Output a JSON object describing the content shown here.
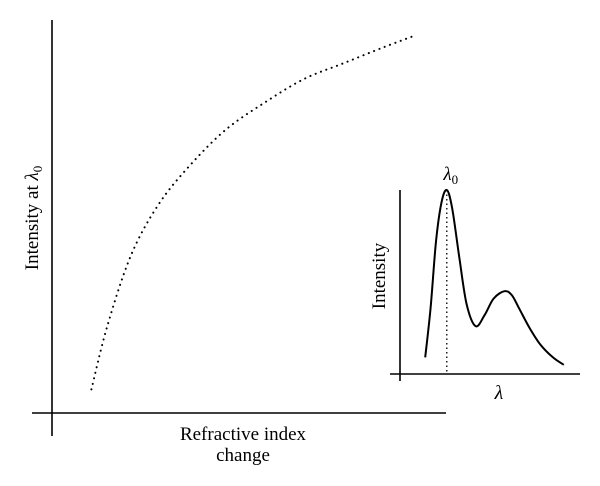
{
  "chart_data": [
    {
      "type": "line",
      "title": "",
      "xlabel": [
        "Refractive index",
        "change"
      ],
      "ylabel_text": "Intensity at ",
      "ylabel_symbol": "λ",
      "ylabel_subscript": "0",
      "xlim": [
        0,
        1
      ],
      "ylim": [
        0,
        1
      ],
      "grid": false,
      "series": [
        {
          "line_style": "dotted",
          "x": [
            0.1,
            0.14,
            0.2,
            0.27,
            0.35,
            0.44,
            0.54,
            0.64,
            0.74,
            0.84,
            0.92
          ],
          "y": [
            0.06,
            0.22,
            0.4,
            0.53,
            0.63,
            0.72,
            0.79,
            0.85,
            0.89,
            0.93,
            0.96
          ]
        }
      ]
    },
    {
      "type": "line",
      "title": "",
      "xlabel": "λ",
      "ylabel": "Intensity",
      "peak_label_symbol": "λ",
      "peak_label_subscript": "0",
      "peak_x": 0.26,
      "xlim": [
        0,
        1
      ],
      "ylim": [
        0,
        1
      ],
      "grid": false,
      "series": [
        {
          "line_style": "solid",
          "x": [
            0.14,
            0.17,
            0.2,
            0.23,
            0.26,
            0.29,
            0.33,
            0.37,
            0.42,
            0.47,
            0.52,
            0.58,
            0.62,
            0.66,
            0.72,
            0.78,
            0.85,
            0.91
          ],
          "y": [
            0.09,
            0.36,
            0.72,
            0.93,
            1.0,
            0.9,
            0.63,
            0.38,
            0.26,
            0.32,
            0.41,
            0.45,
            0.43,
            0.36,
            0.25,
            0.16,
            0.09,
            0.05
          ]
        }
      ]
    }
  ]
}
